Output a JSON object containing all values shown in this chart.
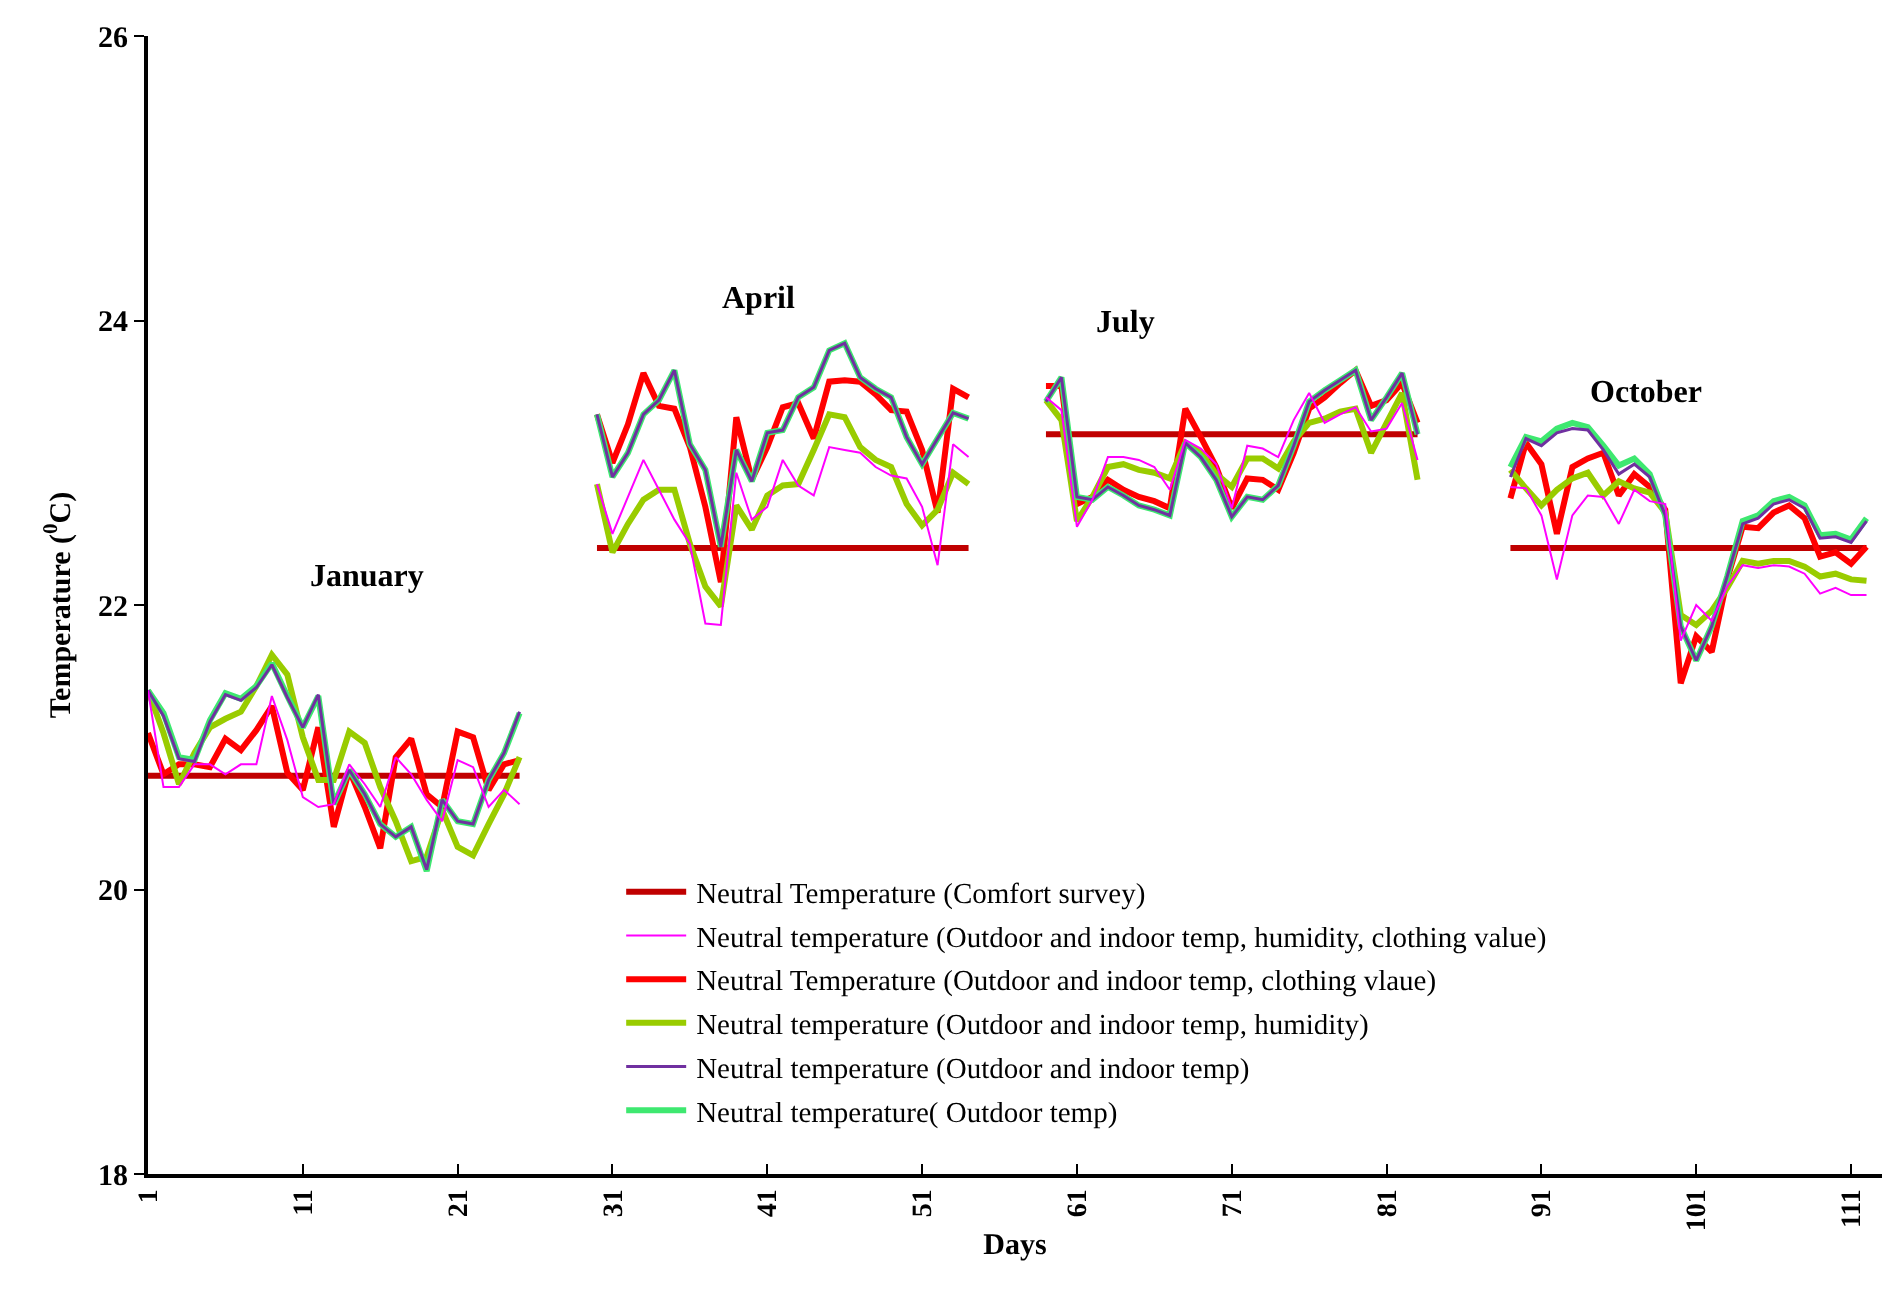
{
  "chart_data": {
    "type": "line",
    "xlabel": "Days",
    "ylabel": "Temperature ($^{0}$C)",
    "x": [
      1,
      2,
      3,
      4,
      5,
      6,
      7,
      8,
      9,
      10,
      11,
      12,
      13,
      14,
      15,
      16,
      17,
      18,
      19,
      20,
      21,
      22,
      23,
      24,
      25,
      27,
      30,
      31,
      32,
      33,
      34,
      35,
      36,
      37,
      38,
      39,
      40,
      41,
      42,
      43,
      44,
      45,
      46,
      47,
      48,
      49,
      50,
      51,
      52,
      53,
      54,
      56,
      59,
      60,
      61,
      62,
      63,
      64,
      65,
      66,
      67,
      68,
      69,
      70,
      71,
      72,
      73,
      74,
      75,
      76,
      77,
      78,
      79,
      80,
      81,
      82,
      83,
      86,
      89,
      90,
      91,
      92,
      93,
      94,
      95,
      96,
      97,
      98,
      99,
      100,
      101,
      102,
      103,
      104,
      105,
      106,
      107,
      108,
      109,
      110,
      111,
      112
    ],
    "xlim": [
      1,
      113
    ],
    "xticks": [
      1,
      11,
      21,
      31,
      41,
      51,
      61,
      71,
      81,
      91,
      101,
      111
    ],
    "ylim": [
      18,
      26
    ],
    "yticks": [
      18,
      20,
      22,
      24,
      26
    ],
    "grid": false,
    "legend": "bottom",
    "marker": "none",
    "line_style": "solid",
    "series": [
      {
        "name": "Neutral Temperature (Comfort survey)",
        "color": "#c00000",
        "values": [
          20.8,
          20.8,
          20.8,
          20.8,
          20.8,
          20.8,
          20.8,
          20.8,
          20.8,
          20.8,
          20.8,
          20.8,
          20.8,
          20.8,
          20.8,
          20.8,
          20.8,
          20.8,
          20.8,
          20.8,
          20.8,
          20.8,
          20.8,
          20.8,
          20.8,
          null,
          22.4,
          22.4,
          22.4,
          22.4,
          22.4,
          22.4,
          22.4,
          22.4,
          22.4,
          22.4,
          22.4,
          22.4,
          22.4,
          22.4,
          22.4,
          22.4,
          22.4,
          22.4,
          22.4,
          22.4,
          22.4,
          22.4,
          22.4,
          22.4,
          22.4,
          null,
          23.2,
          23.2,
          23.2,
          23.2,
          23.2,
          23.2,
          23.2,
          23.2,
          23.2,
          23.2,
          23.2,
          23.2,
          23.2,
          23.2,
          23.2,
          23.2,
          23.2,
          23.2,
          23.2,
          23.2,
          23.2,
          23.2,
          23.2,
          23.2,
          23.2,
          null,
          22.4,
          22.4,
          22.4,
          22.4,
          22.4,
          22.4,
          22.4,
          22.4,
          22.4,
          22.4,
          22.4,
          22.4,
          22.4,
          22.4,
          22.4,
          22.4,
          22.4,
          22.4,
          22.4,
          22.4,
          22.4,
          22.4,
          22.4,
          22.4
        ]
      },
      {
        "name": "Neutral temperature (Outdoor and indoor temp, humidity, clothing value)",
        "color": "#ff00ff",
        "values": [
          21.4,
          20.72,
          20.72,
          20.88,
          20.88,
          20.81,
          20.88,
          20.88,
          21.36,
          21.05,
          20.65,
          20.58,
          20.6,
          20.88,
          20.74,
          20.58,
          20.93,
          20.81,
          20.63,
          20.48,
          20.91,
          20.86,
          20.58,
          20.7,
          20.6,
          null,
          22.85,
          22.5,
          22.76,
          23.02,
          22.81,
          22.6,
          22.43,
          21.87,
          21.86,
          22.93,
          22.6,
          22.69,
          23.02,
          22.84,
          22.77,
          23.11,
          23.09,
          23.07,
          22.97,
          22.91,
          22.89,
          22.69,
          22.28,
          23.13,
          23.04,
          null,
          23.46,
          23.37,
          22.55,
          22.74,
          23.04,
          23.04,
          23.02,
          22.97,
          22.81,
          23.16,
          23.1,
          22.99,
          22.68,
          23.12,
          23.1,
          23.04,
          23.3,
          23.49,
          23.28,
          23.34,
          23.39,
          23.22,
          23.24,
          23.42,
          23.02,
          null,
          22.83,
          22.82,
          22.63,
          22.18,
          22.63,
          22.77,
          22.76,
          22.57,
          22.81,
          22.73,
          22.71,
          21.75,
          22.0,
          21.89,
          22.13,
          22.28,
          22.26,
          22.28,
          22.27,
          22.22,
          22.08,
          22.12,
          22.07,
          22.07
        ]
      },
      {
        "name": "Neutral Temperature (Outdoor and indoor temp, clothing vlaue)",
        "color": "#ff0000",
        "values": [
          21.1,
          20.81,
          20.88,
          20.88,
          20.86,
          21.06,
          20.98,
          21.12,
          21.29,
          20.82,
          20.7,
          21.14,
          20.44,
          20.84,
          20.58,
          20.29,
          20.93,
          21.06,
          20.67,
          20.58,
          21.11,
          21.07,
          20.7,
          20.88,
          20.91,
          null,
          23.34,
          23.0,
          23.27,
          23.63,
          23.4,
          23.38,
          23.11,
          22.69,
          22.16,
          23.32,
          22.88,
          23.11,
          23.39,
          23.42,
          23.17,
          23.57,
          23.58,
          23.57,
          23.48,
          23.37,
          23.36,
          23.09,
          22.65,
          23.52,
          23.46,
          null,
          23.54,
          23.54,
          22.71,
          22.76,
          22.88,
          22.81,
          22.76,
          22.73,
          22.68,
          23.38,
          23.18,
          22.97,
          22.68,
          22.89,
          22.88,
          22.81,
          23.07,
          23.38,
          23.46,
          23.56,
          23.65,
          23.4,
          23.44,
          23.56,
          23.28,
          null,
          22.75,
          23.14,
          22.99,
          22.5,
          22.97,
          23.03,
          23.07,
          22.77,
          22.92,
          22.83,
          22.67,
          21.45,
          21.78,
          21.67,
          22.18,
          22.55,
          22.54,
          22.65,
          22.7,
          22.61,
          22.34,
          22.37,
          22.29,
          22.41
        ]
      },
      {
        "name": "Neutral temperature (Outdoor and indoor temp, humidity)",
        "color": "#99cc00",
        "values": [
          21.4,
          21.1,
          20.74,
          20.96,
          21.14,
          21.2,
          21.25,
          21.43,
          21.65,
          21.51,
          21.07,
          20.77,
          20.77,
          21.11,
          21.03,
          20.72,
          20.48,
          20.2,
          20.23,
          20.56,
          20.3,
          20.24,
          20.46,
          20.67,
          20.93,
          null,
          22.85,
          22.37,
          22.57,
          22.74,
          22.81,
          22.81,
          22.43,
          22.13,
          21.99,
          22.7,
          22.53,
          22.77,
          22.84,
          22.85,
          23.09,
          23.34,
          23.32,
          23.11,
          23.02,
          22.97,
          22.71,
          22.56,
          22.67,
          22.93,
          22.85,
          null,
          23.44,
          23.3,
          22.59,
          22.76,
          22.97,
          22.99,
          22.95,
          22.93,
          22.89,
          23.14,
          23.07,
          22.92,
          22.83,
          23.03,
          23.03,
          22.96,
          23.15,
          23.28,
          23.31,
          23.36,
          23.38,
          23.07,
          23.28,
          23.49,
          22.88,
          null,
          22.95,
          22.82,
          22.7,
          22.81,
          22.89,
          22.93,
          22.77,
          22.87,
          22.82,
          22.79,
          22.65,
          21.93,
          21.86,
          21.96,
          22.12,
          22.31,
          22.29,
          22.31,
          22.31,
          22.27,
          22.2,
          22.22,
          22.18,
          22.17
        ]
      },
      {
        "name": "Neutral temperature (Outdoor and indoor temp)",
        "color": "#7030a0",
        "values": [
          21.4,
          21.22,
          20.92,
          20.9,
          21.18,
          21.37,
          21.33,
          21.42,
          21.58,
          21.35,
          21.14,
          21.37,
          20.6,
          20.84,
          20.67,
          20.46,
          20.37,
          20.44,
          20.14,
          20.63,
          20.48,
          20.46,
          20.77,
          20.96,
          21.25,
          null,
          23.34,
          22.9,
          23.07,
          23.34,
          23.44,
          23.65,
          23.13,
          22.95,
          22.41,
          23.09,
          22.87,
          23.21,
          23.23,
          23.46,
          23.53,
          23.79,
          23.84,
          23.6,
          23.52,
          23.46,
          23.18,
          22.99,
          23.17,
          23.35,
          23.31,
          null,
          23.43,
          23.6,
          22.76,
          22.74,
          22.83,
          22.77,
          22.7,
          22.67,
          22.63,
          23.14,
          23.04,
          22.88,
          22.62,
          22.76,
          22.74,
          22.84,
          23.12,
          23.43,
          23.51,
          23.58,
          23.65,
          23.3,
          23.46,
          23.63,
          23.2,
          null,
          22.9,
          23.17,
          23.12,
          23.21,
          23.24,
          23.23,
          23.09,
          22.92,
          22.99,
          22.9,
          22.63,
          21.85,
          21.61,
          21.85,
          22.2,
          22.57,
          22.61,
          22.71,
          22.74,
          22.68,
          22.47,
          22.48,
          22.44,
          22.59
        ]
      },
      {
        "name": "Neutral temperature( Outdoor temp)",
        "color": "#3ee870",
        "values": [
          21.4,
          21.24,
          20.93,
          20.91,
          21.19,
          21.38,
          21.34,
          21.43,
          21.59,
          21.36,
          21.14,
          21.36,
          20.6,
          20.84,
          20.67,
          20.46,
          20.37,
          20.44,
          20.13,
          20.63,
          20.48,
          20.46,
          20.77,
          20.96,
          21.24,
          null,
          23.34,
          22.9,
          23.07,
          23.34,
          23.44,
          23.65,
          23.13,
          22.95,
          22.41,
          23.09,
          22.87,
          23.21,
          23.23,
          23.46,
          23.53,
          23.79,
          23.84,
          23.6,
          23.52,
          23.46,
          23.18,
          22.99,
          23.17,
          23.35,
          23.31,
          null,
          23.43,
          23.6,
          22.76,
          22.74,
          22.83,
          22.77,
          22.7,
          22.67,
          22.63,
          23.14,
          23.04,
          22.88,
          22.62,
          22.76,
          22.74,
          22.84,
          23.12,
          23.43,
          23.51,
          23.58,
          23.65,
          23.3,
          23.46,
          23.63,
          23.2,
          null,
          22.97,
          23.18,
          23.15,
          23.24,
          23.28,
          23.25,
          23.12,
          22.98,
          23.03,
          22.92,
          22.63,
          21.85,
          21.61,
          21.85,
          22.2,
          22.59,
          22.63,
          22.73,
          22.76,
          22.7,
          22.49,
          22.5,
          22.46,
          22.61
        ]
      }
    ],
    "annotations": [
      "January",
      "April",
      "July",
      "October"
    ]
  }
}
